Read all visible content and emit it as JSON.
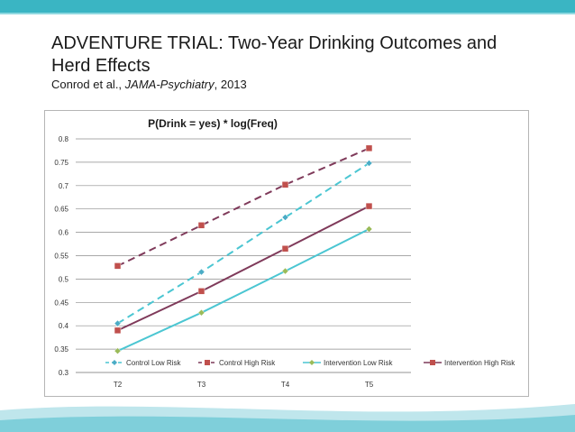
{
  "slide": {
    "title": "ADVENTURE TRIAL:  Two-Year Drinking Outcomes and Herd Effects",
    "citation_authors": "Conrod et al., ",
    "citation_journal": "JAMA-Psychiatry",
    "citation_year": ", 2013"
  },
  "chart_data": {
    "type": "line",
    "title": "P(Drink = yes) * log(Freq)",
    "xlabel": "",
    "ylabel": "",
    "categories": [
      "T2",
      "T3",
      "T4",
      "T5"
    ],
    "ylim": [
      0.3,
      0.8
    ],
    "yticks": [
      "0.3",
      "0.35",
      "0.4",
      "0.45",
      "0.5",
      "0.55",
      "0.6",
      "0.65",
      "0.7",
      "0.75",
      "0.8"
    ],
    "grid": true,
    "legend_position": "bottom",
    "series": [
      {
        "name": "Control Low Risk",
        "values": [
          0.405,
          0.515,
          0.632,
          0.748
        ],
        "color": "#4bacc6",
        "line_color": "#4bc6d2",
        "dash": true,
        "marker": "diamond"
      },
      {
        "name": "Control High Risk",
        "values": [
          0.528,
          0.615,
          0.702,
          0.78
        ],
        "color": "#c0504d",
        "line_color": "#7f3a5a",
        "dash": true,
        "marker": "square"
      },
      {
        "name": "Intervention Low Risk",
        "values": [
          0.346,
          0.428,
          0.517,
          0.607
        ],
        "color": "#9bbb59",
        "line_color": "#4bc6d2",
        "dash": false,
        "marker": "diamond"
      },
      {
        "name": "Intervention High Risk",
        "values": [
          0.39,
          0.474,
          0.565,
          0.656
        ],
        "color": "#c0504d",
        "line_color": "#7f3a5a",
        "dash": false,
        "marker": "square"
      }
    ]
  }
}
